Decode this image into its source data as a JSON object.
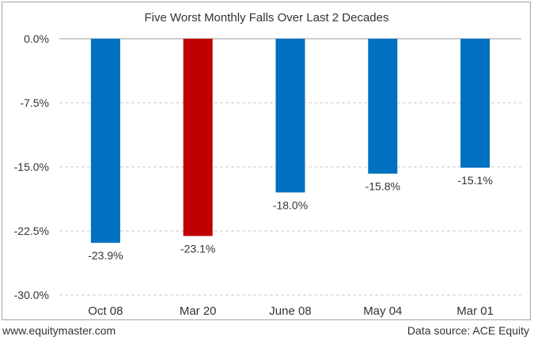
{
  "chart_data": {
    "type": "bar",
    "title": "Five Worst Monthly Falls Over Last 2 Decades",
    "categories": [
      "Oct 08",
      "Mar 20",
      "June 08",
      "May 04",
      "Mar 01"
    ],
    "values": [
      -23.9,
      -23.1,
      -18.0,
      -15.8,
      -15.1
    ],
    "data_labels": [
      "-23.9%",
      "-23.1%",
      "-18.0%",
      "-15.8%",
      "-15.1%"
    ],
    "colors": [
      "#0070c0",
      "#c00000",
      "#0070c0",
      "#0070c0",
      "#0070c0"
    ],
    "ylim": [
      -30,
      0
    ],
    "yticks": [
      0,
      -7.5,
      -15,
      -22.5,
      -30
    ],
    "ytick_labels": [
      "0.0%",
      "-7.5%",
      "-15.0%",
      "-22.5%",
      "-30.0%"
    ],
    "grid": true,
    "xlabel": "",
    "ylabel": ""
  },
  "footer": {
    "website": "www.equitymaster.com",
    "source": "Data source: ACE Equity"
  }
}
